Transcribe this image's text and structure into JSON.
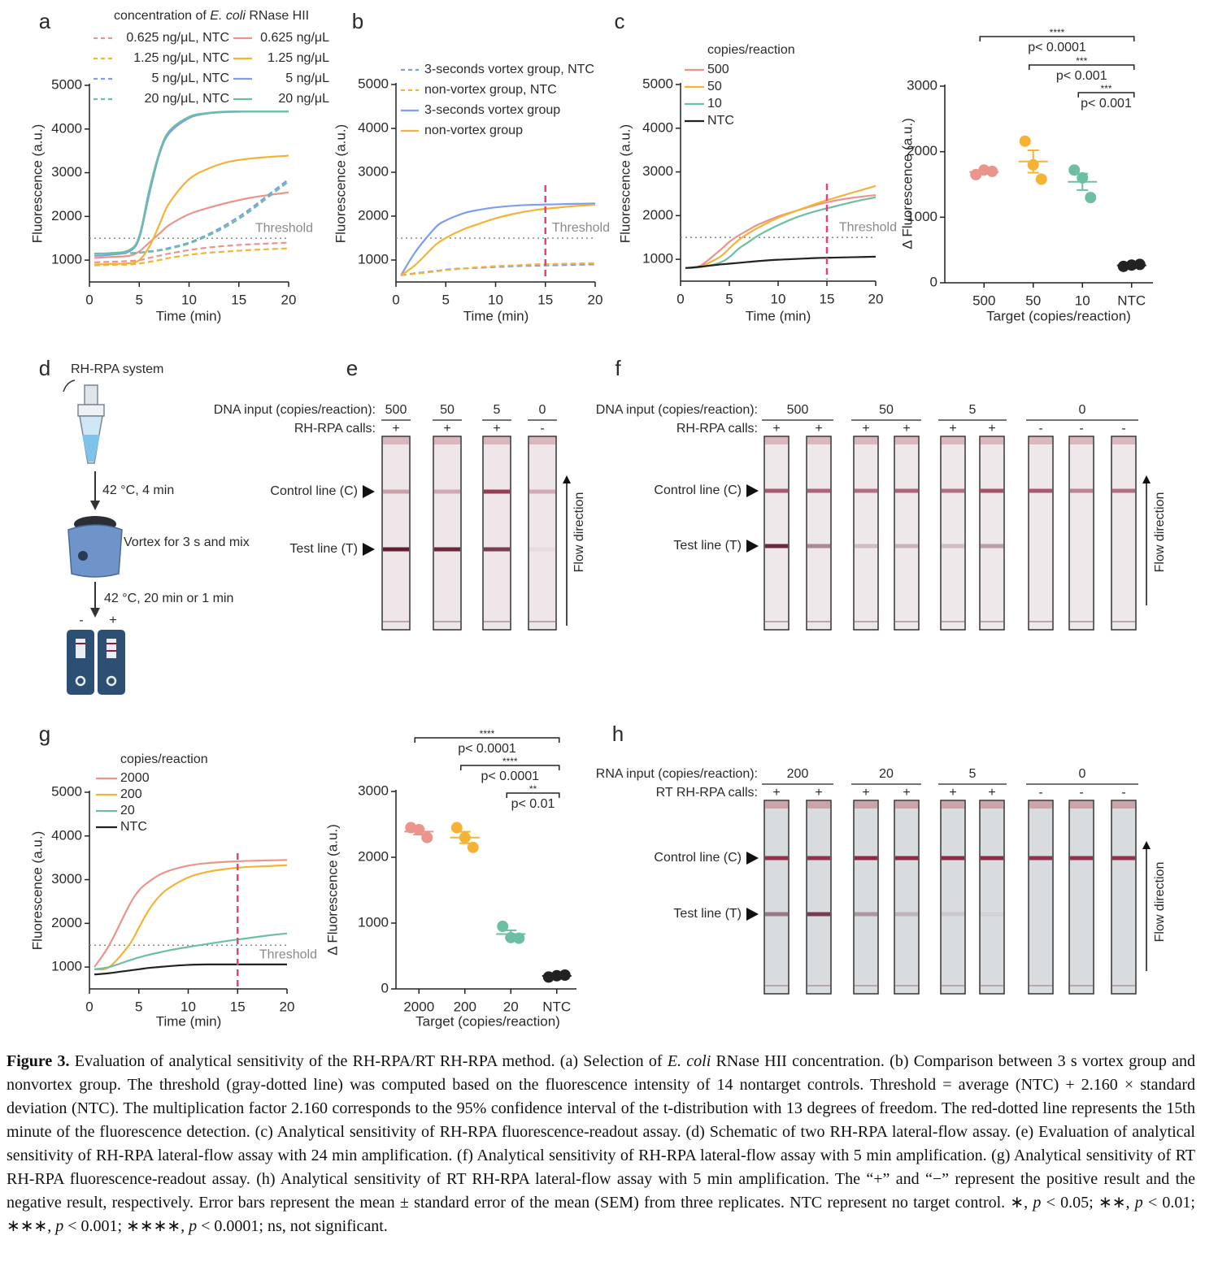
{
  "panel_labels": [
    "a",
    "b",
    "c",
    "d",
    "e",
    "f",
    "g",
    "h"
  ],
  "chart_data": [
    {
      "type": "line",
      "legend_title": [
        "concentration of ",
        "E. coli",
        " RNase HII"
      ],
      "xlabel": "Time (min)",
      "ylabel": "Fluorescence (a.u.)",
      "x": [
        0.5,
        2,
        4,
        5,
        6,
        7,
        8,
        10,
        12,
        14,
        16,
        18,
        20
      ],
      "xlim": [
        0,
        20
      ],
      "xticks": [
        0,
        5,
        10,
        15,
        20
      ],
      "ylim": [
        500,
        5000
      ],
      "yticks": [
        1000,
        2000,
        3000,
        4000,
        5000
      ],
      "threshold": 1500,
      "threshold_label": "Threshold",
      "series": [
        {
          "name": "0.625 ng/μL, NTC",
          "color": "#eb948c",
          "dashed": true,
          "values": [
            950,
            960,
            980,
            1000,
            1050,
            1100,
            1150,
            1230,
            1290,
            1330,
            1360,
            1380,
            1400
          ]
        },
        {
          "name": "0.625 ng/μL",
          "color": "#eb948c",
          "dashed": false,
          "values": [
            1050,
            1070,
            1100,
            1200,
            1400,
            1600,
            1800,
            2050,
            2200,
            2320,
            2420,
            2490,
            2550
          ]
        },
        {
          "name": "1.25 ng/μL, NTC",
          "color": "#f5b335",
          "dashed": true,
          "values": [
            880,
            890,
            900,
            920,
            960,
            1000,
            1050,
            1120,
            1170,
            1200,
            1230,
            1250,
            1270
          ]
        },
        {
          "name": "1.25 ng/μL",
          "color": "#f5b335",
          "dashed": false,
          "values": [
            900,
            910,
            930,
            1000,
            1300,
            1800,
            2300,
            2850,
            3100,
            3250,
            3320,
            3360,
            3390
          ]
        },
        {
          "name": "5 ng/μL, NTC",
          "color": "#7c9eeb",
          "dashed": true,
          "values": [
            1150,
            1150,
            1160,
            1170,
            1200,
            1230,
            1280,
            1400,
            1600,
            1850,
            2150,
            2500,
            2850
          ]
        },
        {
          "name": "5 ng/μL",
          "color": "#7c9eeb",
          "dashed": false,
          "values": [
            1100,
            1120,
            1200,
            1500,
            2500,
            3400,
            3900,
            4250,
            4360,
            4390,
            4400,
            4400,
            4400
          ]
        },
        {
          "name": "20 ng/μL, NTC",
          "color": "#6dbfa1",
          "dashed": true,
          "values": [
            1150,
            1150,
            1160,
            1170,
            1190,
            1220,
            1260,
            1380,
            1570,
            1800,
            2100,
            2450,
            2800
          ]
        },
        {
          "name": "20 ng/μL",
          "color": "#6dbfa1",
          "dashed": false,
          "values": [
            1150,
            1160,
            1230,
            1550,
            2600,
            3450,
            3950,
            4280,
            4370,
            4400,
            4400,
            4400,
            4400
          ]
        }
      ]
    },
    {
      "type": "line",
      "xlabel": "Time (min)",
      "ylabel": "Fluorescence (a.u.)",
      "x": [
        0.5,
        2,
        4,
        5,
        6,
        7,
        8,
        10,
        12,
        14,
        16,
        18,
        20
      ],
      "xlim": [
        0,
        20
      ],
      "xticks": [
        0,
        5,
        10,
        15,
        20
      ],
      "ylim": [
        500,
        5000
      ],
      "yticks": [
        1000,
        2000,
        3000,
        4000,
        5000
      ],
      "threshold": 1500,
      "threshold_label": "Threshold",
      "marker_x": 15,
      "series": [
        {
          "name": "3-seconds vortex group, NTC",
          "color": "#7c9eeb",
          "dashed": true,
          "values": [
            650,
            700,
            750,
            780,
            800,
            810,
            820,
            840,
            860,
            870,
            880,
            890,
            900
          ]
        },
        {
          "name": "non-vortex group, NTC",
          "color": "#f5b335",
          "dashed": true,
          "values": [
            650,
            690,
            740,
            770,
            790,
            810,
            830,
            860,
            880,
            900,
            910,
            920,
            930
          ]
        },
        {
          "name": "3-seconds vortex group",
          "color": "#7c9eeb",
          "dashed": false,
          "values": [
            650,
            1200,
            1750,
            1900,
            2000,
            2080,
            2130,
            2200,
            2240,
            2260,
            2270,
            2280,
            2290
          ]
        },
        {
          "name": "non-vortex group",
          "color": "#f5b335",
          "dashed": false,
          "values": [
            650,
            900,
            1350,
            1500,
            1620,
            1720,
            1800,
            1950,
            2060,
            2140,
            2190,
            2230,
            2260
          ]
        }
      ]
    },
    {
      "type": "line",
      "legend_title": [
        "copies/reaction"
      ],
      "xlabel": "Time (min)",
      "ylabel": "Fluorescence (a.u.)",
      "x": [
        0.5,
        2,
        4,
        5,
        6,
        7,
        8,
        10,
        12,
        14,
        16,
        18,
        20
      ],
      "xlim": [
        0,
        20
      ],
      "xticks": [
        0,
        5,
        10,
        15,
        20
      ],
      "ylim": [
        500,
        5000
      ],
      "yticks": [
        1000,
        2000,
        3000,
        4000,
        5000
      ],
      "threshold": 1500,
      "threshold_label": "Threshold",
      "marker_x": 15,
      "series": [
        {
          "name": "500",
          "color": "#eb948c",
          "dashed": false,
          "values": [
            800,
            850,
            1200,
            1400,
            1550,
            1680,
            1800,
            1980,
            2120,
            2250,
            2350,
            2420,
            2470
          ]
        },
        {
          "name": "50",
          "color": "#f5b335",
          "dashed": false,
          "values": [
            800,
            830,
            1050,
            1250,
            1450,
            1600,
            1730,
            1950,
            2120,
            2280,
            2420,
            2550,
            2680
          ]
        },
        {
          "name": "10",
          "color": "#6dbfa1",
          "dashed": false,
          "values": [
            800,
            820,
            920,
            1050,
            1250,
            1400,
            1550,
            1780,
            1970,
            2110,
            2220,
            2330,
            2420
          ]
        },
        {
          "name": "NTC",
          "color": "#222222",
          "dashed": false,
          "values": [
            800,
            830,
            880,
            900,
            920,
            940,
            960,
            990,
            1010,
            1030,
            1040,
            1050,
            1060
          ]
        }
      ]
    },
    {
      "type": "dot",
      "categories": [
        "500",
        "50",
        "10",
        "NTC"
      ],
      "xlabel": "Target (copies/reaction)",
      "ylabel": "Δ Fluorescence (a.u.)",
      "values": [
        [
          1650,
          1720,
          1700
        ],
        [
          2160,
          1800,
          1580
        ],
        [
          1720,
          1600,
          1300
        ],
        [
          250,
          270,
          280
        ]
      ],
      "means": [
        1690,
        1850,
        1540,
        265
      ],
      "errors": [
        22,
        170,
        125,
        9
      ],
      "colors": [
        "#eb948c",
        "#f5b335",
        "#6dbfa1",
        "#222222"
      ],
      "ylim": [
        0,
        3000
      ],
      "yticks": [
        0,
        1000,
        2000,
        3000
      ],
      "comparisons": [
        {
          "stars": "****",
          "label": "p< 0.0001"
        },
        {
          "stars": "***",
          "label": "p< 0.001"
        },
        {
          "stars": "***",
          "label": "p< 0.001"
        }
      ]
    },
    {
      "type": "line",
      "legend_title": [
        "copies/reaction"
      ],
      "xlabel": "Time (min)",
      "ylabel": "Fluorescence (a.u.)",
      "x": [
        0.5,
        2,
        4,
        5,
        6,
        7,
        8,
        10,
        12,
        14,
        16,
        18,
        20
      ],
      "xlim": [
        0,
        20
      ],
      "xticks": [
        0,
        5,
        10,
        15,
        20
      ],
      "ylim": [
        500,
        5000
      ],
      "yticks": [
        1000,
        2000,
        3000,
        4000,
        5000
      ],
      "threshold": 1500,
      "threshold_label": "Threshold",
      "marker_x": 15,
      "series": [
        {
          "name": "2000",
          "color": "#eb948c",
          "dashed": false,
          "values": [
            1000,
            1500,
            2400,
            2750,
            2950,
            3100,
            3200,
            3320,
            3380,
            3410,
            3430,
            3440,
            3450
          ]
        },
        {
          "name": "200",
          "color": "#f5b335",
          "dashed": false,
          "values": [
            950,
            1000,
            1500,
            1900,
            2300,
            2600,
            2800,
            3050,
            3180,
            3250,
            3290,
            3310,
            3330
          ]
        },
        {
          "name": "20",
          "color": "#6dbfa1",
          "dashed": false,
          "values": [
            950,
            1000,
            1150,
            1220,
            1280,
            1330,
            1380,
            1460,
            1530,
            1600,
            1660,
            1720,
            1770
          ]
        },
        {
          "name": "NTC",
          "color": "#222222",
          "dashed": false,
          "values": [
            830,
            860,
            920,
            950,
            980,
            1000,
            1020,
            1050,
            1060,
            1060,
            1060,
            1060,
            1060
          ]
        }
      ]
    },
    {
      "type": "dot",
      "categories": [
        "2000",
        "200",
        "20",
        "NTC"
      ],
      "xlabel": "Target (copies/reaction)",
      "ylabel": "Δ Fluorescence (a.u.)",
      "values": [
        [
          2450,
          2420,
          2300
        ],
        [
          2450,
          2300,
          2150
        ],
        [
          950,
          780,
          770
        ],
        [
          180,
          200,
          210
        ]
      ],
      "means": [
        2390,
        2300,
        833,
        197
      ],
      "errors": [
        46,
        87,
        58,
        9
      ],
      "colors": [
        "#eb948c",
        "#f5b335",
        "#6dbfa1",
        "#222222"
      ],
      "ylim": [
        0,
        3000
      ],
      "yticks": [
        0,
        1000,
        2000,
        3000
      ],
      "comparisons": [
        {
          "stars": "****",
          "label": "p< 0.0001"
        },
        {
          "stars": "****",
          "label": "p< 0.0001"
        },
        {
          "stars": "**",
          "label": "p< 0.01"
        }
      ]
    }
  ],
  "schematic": {
    "title": "RH-RPA system",
    "steps": [
      "42 °C, 4 min",
      "Vortex for 3 s and mix",
      "42 °C, 20 min or 1 min"
    ],
    "results": [
      "-",
      "+"
    ]
  },
  "strip_panels": [
    {
      "input_label": "DNA input (copies/reaction):",
      "calls_label": "RH-RPA calls:",
      "control_label": "Control line (C)",
      "test_label": "Test line (T)",
      "flow_label": "Flow direction",
      "groups": [
        {
          "input": "500",
          "calls": [
            "+"
          ]
        },
        {
          "input": "50",
          "calls": [
            "+"
          ]
        },
        {
          "input": "5",
          "calls": [
            "+"
          ]
        },
        {
          "input": "0",
          "calls": [
            "-"
          ]
        }
      ]
    },
    {
      "input_label": "DNA input (copies/reaction):",
      "calls_label": "RH-RPA calls:",
      "control_label": "Control line (C)",
      "test_label": "Test line (T)",
      "flow_label": "Flow direction",
      "groups": [
        {
          "input": "500",
          "calls": [
            "+",
            "+"
          ]
        },
        {
          "input": "50",
          "calls": [
            "+",
            "+"
          ]
        },
        {
          "input": "5",
          "calls": [
            "+",
            "+"
          ]
        },
        {
          "input": "0",
          "calls": [
            "-",
            "-",
            "-"
          ]
        }
      ]
    },
    {
      "input_label": "RNA input (copies/reaction):",
      "calls_label": "RT RH-RPA calls:",
      "control_label": "Control line (C)",
      "test_label": "Test line (T)",
      "flow_label": "Flow direction",
      "groups": [
        {
          "input": "200",
          "calls": [
            "+",
            "+"
          ]
        },
        {
          "input": "20",
          "calls": [
            "+",
            "+"
          ]
        },
        {
          "input": "5",
          "calls": [
            "+",
            "+"
          ]
        },
        {
          "input": "0",
          "calls": [
            "-",
            "-",
            "-"
          ]
        }
      ]
    }
  ],
  "caption": {
    "label": "Figure 3.",
    "runs": [
      " Evaluation of analytical sensitivity of the RH-RPA/RT RH-RPA method. (a) Selection of ",
      "E. coli",
      " RNase HII concentration. (b) Comparison between 3 s vortex group and nonvortex group. The threshold (gray-dotted line) was computed based on the fluorescence intensity of 14 nontarget controls. Threshold = average (NTC) + 2.160 × standard deviation (NTC). The multiplication factor 2.160 corresponds to the 95% confidence interval of the t-distribution with 13 degrees of freedom. The red-dotted line represents the 15th minute of the fluorescence detection. (c) Analytical sensitivity of RH-RPA fluorescence-readout assay. (d) Schematic of two RH-RPA lateral-flow assay. (e) Evaluation of analytical sensitivity of RH-RPA lateral-flow assay with 24 min amplification. (f) Analytical sensitivity of RH-RPA lateral-flow assay with 5 min amplification. (g) Analytical sensitivity of RT RH-RPA fluorescence-readout assay. (h) Analytical sensitivity of RT RH-RPA lateral-flow assay with 5 min amplification. The “+” and “−” represent the positive result and the negative result, respectively. Error bars represent the mean ± standard error of the mean (SEM) from three replicates. NTC represent no target control. ∗, ",
      "p",
      " < 0.05; ∗∗, ",
      "p",
      " < 0.01; ∗∗∗, ",
      "p",
      " < 0.001; ∗∗∗∗, ",
      "p",
      " < 0.0001; ns, not significant."
    ]
  }
}
